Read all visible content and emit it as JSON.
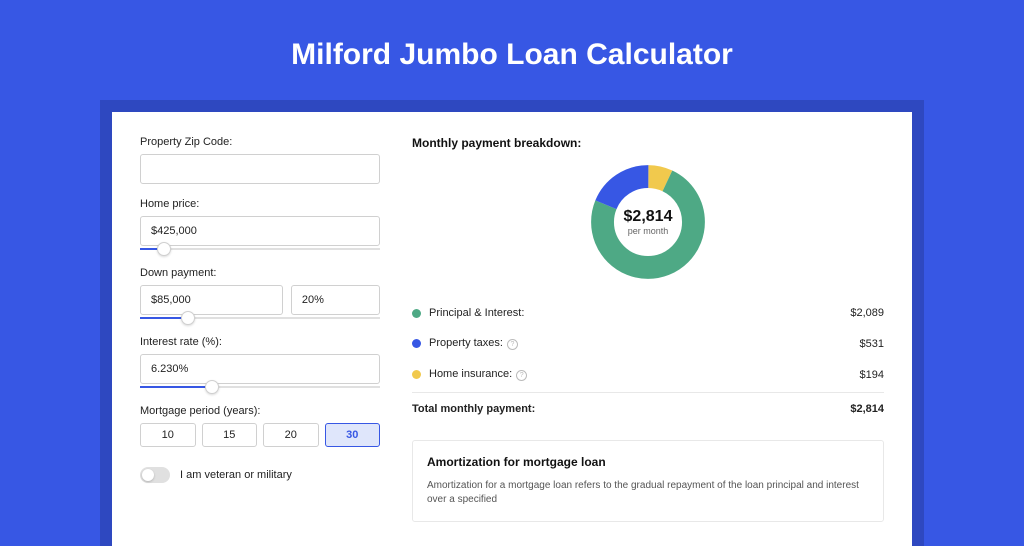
{
  "header": {
    "title": "Milford Jumbo Loan Calculator"
  },
  "colors": {
    "page_bg": "#3757e4",
    "card_shadow_bg": "#2e48c0",
    "card_bg": "#ffffff",
    "accent": "#3757e4",
    "text": "#222222",
    "muted": "#666666",
    "border": "#d0d0d0"
  },
  "form": {
    "zip": {
      "label": "Property Zip Code:",
      "value": ""
    },
    "home_price": {
      "label": "Home price:",
      "value": "$425,000",
      "slider_pct": 10
    },
    "down_payment": {
      "label": "Down payment:",
      "amount": "$85,000",
      "pct": "20%",
      "slider_pct": 20
    },
    "interest_rate": {
      "label": "Interest rate (%):",
      "value": "6.230%",
      "slider_pct": 30
    },
    "mortgage_period": {
      "label": "Mortgage period (years):",
      "options": [
        "10",
        "15",
        "20",
        "30"
      ],
      "selected": "30"
    },
    "veteran": {
      "label": "I am veteran or military",
      "checked": false
    }
  },
  "breakdown": {
    "title": "Monthly payment breakdown:",
    "donut": {
      "center_amount": "$2,814",
      "center_sub": "per month",
      "slices": [
        {
          "label": "Principal & Interest:",
          "value": "$2,089",
          "color": "#4ea985",
          "pct": 74.2,
          "has_info": false
        },
        {
          "label": "Property taxes:",
          "value": "$531",
          "color": "#3757e4",
          "pct": 18.9,
          "has_info": true
        },
        {
          "label": "Home insurance:",
          "value": "$194",
          "color": "#f1c94d",
          "pct": 6.9,
          "has_info": true
        }
      ]
    },
    "total": {
      "label": "Total monthly payment:",
      "value": "$2,814"
    }
  },
  "amortization": {
    "title": "Amortization for mortgage loan",
    "text": "Amortization for a mortgage loan refers to the gradual repayment of the loan principal and interest over a specified"
  }
}
